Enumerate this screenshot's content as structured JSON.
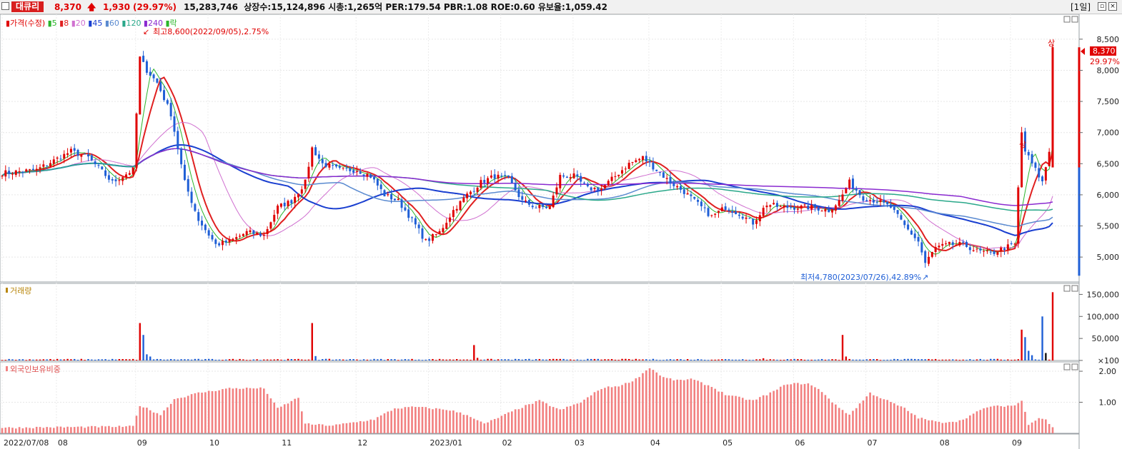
{
  "header": {
    "stock_name": "대큐리",
    "price": "8,370",
    "arrow": "🡅",
    "change": "1,930",
    "change_rate": "(29.97%)",
    "info_text": "15,283,746  상장수:15,124,896 시총:1,265억 PER:179.54 PBR:1.08 ROE:0.60 유보율:1,059.42",
    "period": "[1일]"
  },
  "colors": {
    "up": "#e00000",
    "down": "#1f5fd6",
    "ma5": "#2bb52b",
    "ma8": "#e02020",
    "ma20": "#d070d0",
    "ma45": "#1a3fd0",
    "ma60": "#5a8ad0",
    "ma120": "#2aa88a",
    "ma240": "#8a2ad0",
    "foreign_bar": "#f28080"
  },
  "price_panel": {
    "legend": [
      {
        "label": "가격(수정)",
        "color": "#e00000"
      },
      {
        "label": "5",
        "color": "#2bb52b"
      },
      {
        "label": "8",
        "color": "#e02020"
      },
      {
        "label": "20",
        "color": "#d070d0"
      },
      {
        "label": "45",
        "color": "#1a3fd0"
      },
      {
        "label": "60",
        "color": "#5a8ad0"
      },
      {
        "label": "120",
        "color": "#2aa88a"
      },
      {
        "label": "240",
        "color": "#8a2ad0"
      },
      {
        "label": "락",
        "color": "#2bb52b"
      }
    ],
    "high_annotation": "최고8,600(2022/09/05),2.75%",
    "low_annotation": "최저4,780(2023/07/26),42.89%",
    "upper_limit_marks": [
      "상",
      "상"
    ],
    "last_price_label": "8,370",
    "last_rate_label": "29.97%"
  },
  "volume_panel": {
    "legend": "거래량"
  },
  "foreign_panel": {
    "legend": "외국인보유비중"
  },
  "chart_data": [
    {
      "type": "candlestick",
      "title": "가격(수정)",
      "y_ticks": [
        5000,
        5500,
        6000,
        6500,
        7000,
        7500,
        8000,
        8500
      ],
      "y_tick_labels": [
        "5,000",
        "5,500",
        "6,000",
        "6,500",
        "7,000",
        "7,500",
        "8,000",
        "8,500"
      ],
      "ylim": [
        4600,
        8900
      ],
      "x_labels": [
        "2022/07/08",
        "08",
        "09",
        "10",
        "11",
        "12",
        "2023/01",
        "02",
        "03",
        "04",
        "05",
        "06",
        "07",
        "08",
        "09"
      ],
      "close_path": [
        [
          0,
          6350
        ],
        [
          10,
          6400
        ],
        [
          20,
          6700
        ],
        [
          25,
          6600
        ],
        [
          32,
          6200
        ],
        [
          38,
          6400
        ],
        [
          40,
          8200
        ],
        [
          42,
          8000
        ],
        [
          45,
          7800
        ],
        [
          49,
          7300
        ],
        [
          53,
          6200
        ],
        [
          57,
          5600
        ],
        [
          62,
          5200
        ],
        [
          66,
          5250
        ],
        [
          71,
          5400
        ],
        [
          76,
          5350
        ],
        [
          80,
          5800
        ],
        [
          84,
          5900
        ],
        [
          88,
          6200
        ],
        [
          90,
          6750
        ],
        [
          93,
          6500
        ],
        [
          98,
          6400
        ],
        [
          103,
          6400
        ],
        [
          107,
          6300
        ],
        [
          111,
          6000
        ],
        [
          115,
          5900
        ],
        [
          119,
          5600
        ],
        [
          123,
          5250
        ],
        [
          127,
          5400
        ],
        [
          131,
          5750
        ],
        [
          135,
          6000
        ],
        [
          139,
          6200
        ],
        [
          143,
          6300
        ],
        [
          147,
          6250
        ],
        [
          151,
          5900
        ],
        [
          155,
          5800
        ],
        [
          159,
          5800
        ],
        [
          162,
          6300
        ],
        [
          166,
          6300
        ],
        [
          170,
          6100
        ],
        [
          174,
          6100
        ],
        [
          178,
          6300
        ],
        [
          182,
          6500
        ],
        [
          186,
          6600
        ],
        [
          190,
          6400
        ],
        [
          194,
          6200
        ],
        [
          198,
          6050
        ],
        [
          202,
          5850
        ],
        [
          206,
          5650
        ],
        [
          210,
          5800
        ],
        [
          214,
          5700
        ],
        [
          218,
          5550
        ],
        [
          222,
          5850
        ],
        [
          226,
          5800
        ],
        [
          230,
          5800
        ],
        [
          235,
          5800
        ],
        [
          240,
          5750
        ],
        [
          243,
          5900
        ],
        [
          246,
          6200
        ],
        [
          250,
          5950
        ],
        [
          254,
          5900
        ],
        [
          258,
          5800
        ],
        [
          262,
          5500
        ],
        [
          266,
          5250
        ],
        [
          268,
          4900
        ],
        [
          271,
          5150
        ],
        [
          275,
          5200
        ],
        [
          279,
          5200
        ],
        [
          283,
          5100
        ],
        [
          287,
          5050
        ],
        [
          291,
          5150
        ],
        [
          294,
          5200
        ],
        [
          296,
          7000
        ],
        [
          297,
          6700
        ],
        [
          299,
          6500
        ],
        [
          302,
          6200
        ],
        [
          304,
          6700
        ],
        [
          305,
          8370
        ]
      ],
      "last_price": 8370,
      "annotations": {
        "high": "최고8,600(2022/09/05),2.75%",
        "low": "최저4,780(2023/07/26),42.89%"
      }
    },
    {
      "type": "bar",
      "title": "거래량",
      "y_ticks": [
        100,
        50000,
        100000,
        150000
      ],
      "y_tick_labels": [
        "×100",
        "50,000",
        "100,000",
        "150,000"
      ],
      "ylim": [
        0,
        175000
      ],
      "spikes": [
        {
          "x": 40,
          "value": 85000
        },
        {
          "x": 41,
          "value": 58000
        },
        {
          "x": 42,
          "value": 14000
        },
        {
          "x": 43,
          "value": 9000
        },
        {
          "x": 90,
          "value": 85000
        },
        {
          "x": 91,
          "value": 10000
        },
        {
          "x": 137,
          "value": 35000
        },
        {
          "x": 138,
          "value": 6000
        },
        {
          "x": 221,
          "value": 5000
        },
        {
          "x": 244,
          "value": 58000
        },
        {
          "x": 245,
          "value": 9000
        },
        {
          "x": 296,
          "value": 70000
        },
        {
          "x": 297,
          "value": 53000
        },
        {
          "x": 298,
          "value": 22000
        },
        {
          "x": 299,
          "value": 12000
        },
        {
          "x": 302,
          "value": 100000
        },
        {
          "x": 303,
          "value": 17000
        },
        {
          "x": 305,
          "value": 155000
        }
      ],
      "baseline": 2500
    },
    {
      "type": "bar",
      "title": "외국인보유비중",
      "y_ticks": [
        1.0,
        2.0
      ],
      "y_tick_labels": [
        "1.00",
        "2.00"
      ],
      "ylim": [
        0,
        2.3
      ],
      "path": [
        [
          0,
          0.18
        ],
        [
          20,
          0.2
        ],
        [
          38,
          0.22
        ],
        [
          40,
          0.9
        ],
        [
          46,
          0.6
        ],
        [
          50,
          1.1
        ],
        [
          57,
          1.3
        ],
        [
          66,
          1.45
        ],
        [
          76,
          1.45
        ],
        [
          80,
          0.8
        ],
        [
          86,
          1.15
        ],
        [
          88,
          0.3
        ],
        [
          96,
          0.25
        ],
        [
          108,
          0.45
        ],
        [
          114,
          0.8
        ],
        [
          120,
          0.85
        ],
        [
          130,
          0.75
        ],
        [
          136,
          0.55
        ],
        [
          140,
          0.3
        ],
        [
          150,
          0.8
        ],
        [
          156,
          1.05
        ],
        [
          162,
          0.75
        ],
        [
          168,
          1.0
        ],
        [
          174,
          1.45
        ],
        [
          180,
          1.55
        ],
        [
          184,
          1.75
        ],
        [
          188,
          2.12
        ],
        [
          192,
          1.8
        ],
        [
          196,
          1.7
        ],
        [
          200,
          1.75
        ],
        [
          206,
          1.5
        ],
        [
          210,
          1.25
        ],
        [
          218,
          1.05
        ],
        [
          224,
          1.35
        ],
        [
          228,
          1.6
        ],
        [
          234,
          1.6
        ],
        [
          238,
          1.35
        ],
        [
          242,
          0.9
        ],
        [
          246,
          0.6
        ],
        [
          252,
          1.3
        ],
        [
          258,
          1.0
        ],
        [
          262,
          0.8
        ],
        [
          266,
          0.5
        ],
        [
          272,
          0.35
        ],
        [
          278,
          0.4
        ],
        [
          286,
          0.85
        ],
        [
          294,
          0.9
        ],
        [
          296,
          1.05
        ],
        [
          298,
          0.3
        ],
        [
          301,
          0.5
        ],
        [
          303,
          0.45
        ],
        [
          305,
          0.18
        ]
      ]
    }
  ]
}
